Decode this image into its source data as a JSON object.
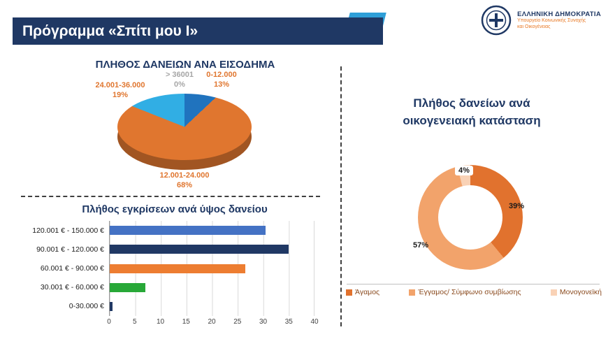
{
  "header": {
    "title": "Πρόγραμμα «Σπίτι μου Ι»",
    "logo": {
      "org": "ΕΛΛΗΝΙΚΗ ΔΗΜΟΚΡΑΤΙΑ",
      "dept_line1": "Υπουργείο Κοινωνικής Συνοχής",
      "dept_line2": "και Οικογένειας"
    }
  },
  "chart_data": [
    {
      "type": "pie",
      "title": "ΠΛΗΘΟΣ ΔΑΝΕΙΩΝ ΑΝΑ ΕΙΣΟΔΗΜΑ",
      "legend_position": "none",
      "slices": [
        {
          "label": "0-12.000",
          "pct_text": "13%",
          "value": 13,
          "color": "#2073BE"
        },
        {
          "label": "12.001-24.000",
          "pct_text": "68%",
          "value": 68,
          "color": "#E0762F"
        },
        {
          "label": "24.001-36.000",
          "pct_text": "19%",
          "value": 19,
          "color": "#31AEE4"
        },
        {
          "label": "> 36001",
          "pct_text": "0%",
          "value": 0,
          "color": "#BFBFBF"
        }
      ]
    },
    {
      "type": "bar",
      "title": "Πλήθος εγκρίσεων ανά ύψος δανείου",
      "orientation": "horizontal",
      "categories": [
        "120.001 € - 150.000 €",
        "90.001 € - 120.000 €",
        "60.001 € - 90.000 €",
        "30.001 € - 60.000 €",
        "0-30.000 €"
      ],
      "values": [
        30.5,
        35,
        26.5,
        7,
        0.5
      ],
      "colors": [
        "#4472C4",
        "#203864",
        "#ED7D31",
        "#28A838",
        "#203864"
      ],
      "xlabel": "",
      "ylabel": "",
      "xlim": [
        0,
        40
      ],
      "xticks": [
        0,
        5,
        10,
        15,
        20,
        25,
        30,
        35,
        40
      ],
      "grid": true
    },
    {
      "type": "pie",
      "subtype": "donut",
      "title_line1": "Πλήθος δανείων ανά",
      "title_line2": "οικογενειακή κατάσταση",
      "legend_position": "bottom",
      "slices": [
        {
          "label": "Άγαμος",
          "pct_text": "39%",
          "value": 39,
          "color": "#E1722E"
        },
        {
          "label": "Έγγαμος/ Σύμφωνο συμβίωσης",
          "pct_text": "57%",
          "value": 57,
          "color": "#F2A36B"
        },
        {
          "label": "Μονογονεϊκή",
          "pct_text": "4%",
          "value": 4,
          "color": "#F9D2B6"
        }
      ]
    }
  ]
}
